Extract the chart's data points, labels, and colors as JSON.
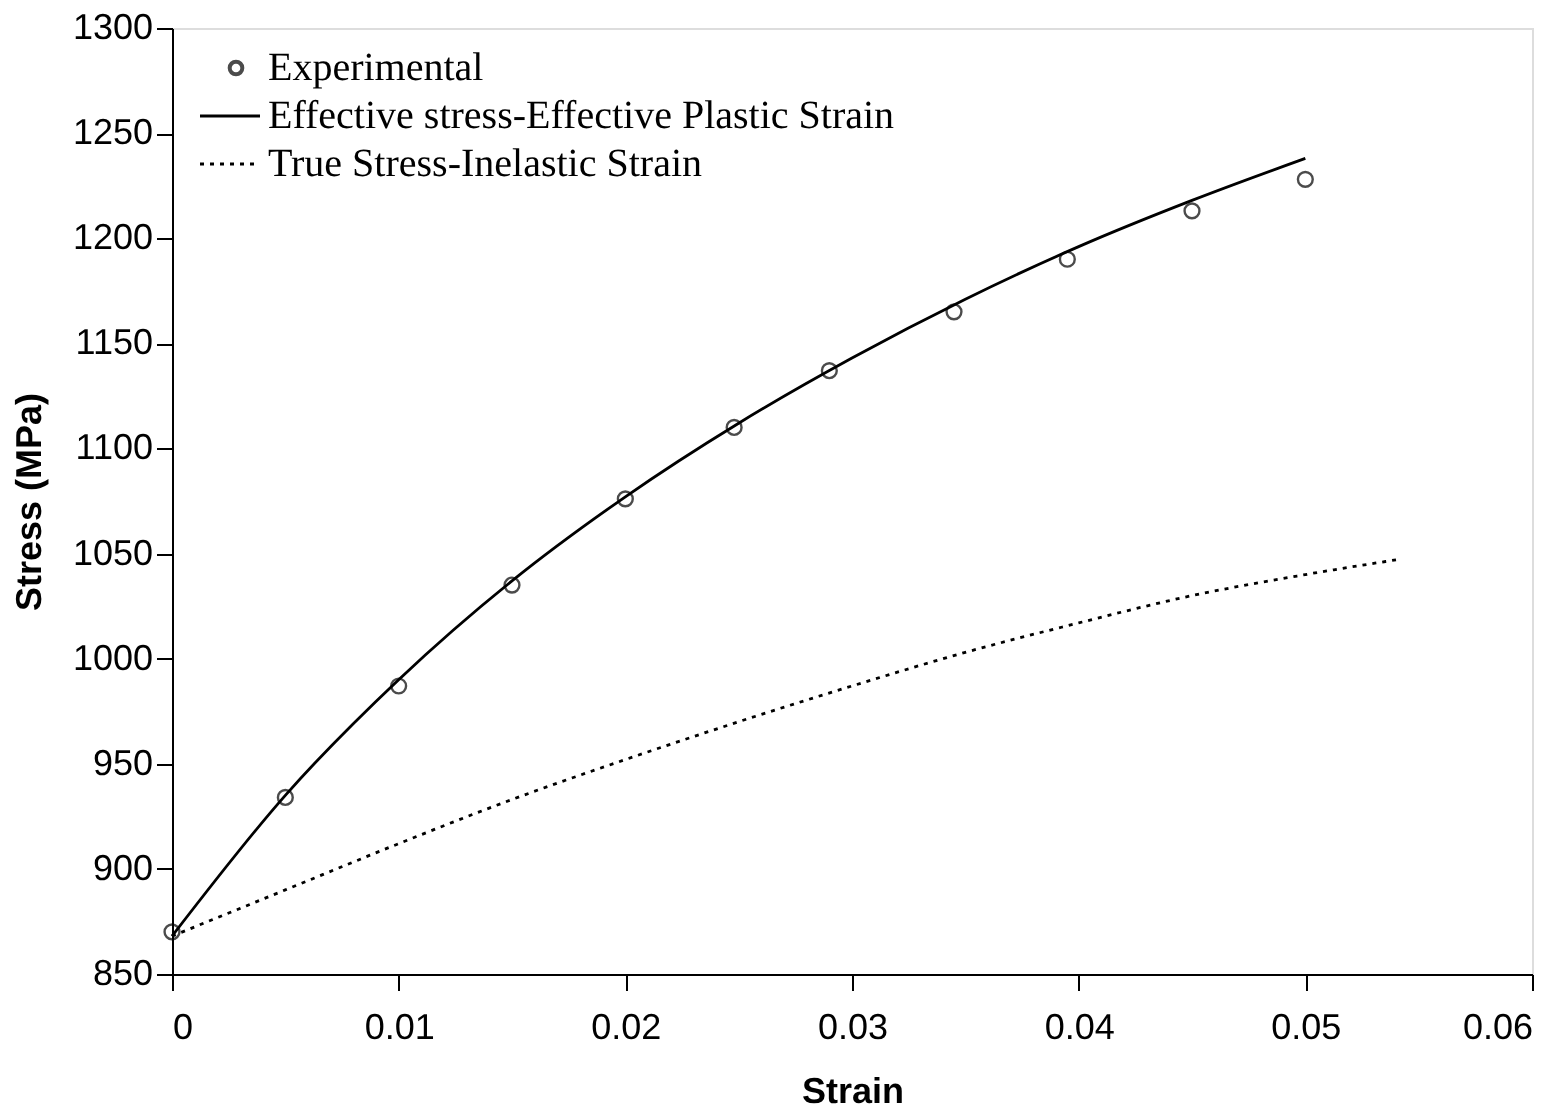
{
  "chart_data": {
    "type": "line",
    "xlabel": "Strain",
    "ylabel": "Stress (MPa)",
    "xlim": [
      0,
      0.06
    ],
    "ylim": [
      850,
      1300
    ],
    "xticks": [
      0,
      0.01,
      0.02,
      0.03,
      0.04,
      0.05,
      0.06
    ],
    "yticks": [
      850,
      900,
      950,
      1000,
      1050,
      1100,
      1150,
      1200,
      1250,
      1300
    ],
    "grid": false,
    "legend": "top left",
    "series": [
      {
        "name": "Experimental",
        "type": "scatter",
        "marker": "circle",
        "color": "#000000",
        "x": [
          0,
          0.005,
          0.01,
          0.015,
          0.02,
          0.0248,
          0.029,
          0.0345,
          0.0395,
          0.045,
          0.05
        ],
        "values": [
          870,
          934,
          987,
          1035,
          1076,
          1110,
          1137,
          1165,
          1190,
          1213,
          1228
        ]
      },
      {
        "name": "Effective stress-Effective Plastic Strain",
        "line_style": "solid",
        "color": "#000000",
        "x": [
          0,
          0.005,
          0.01,
          0.015,
          0.02,
          0.025,
          0.03,
          0.035,
          0.04,
          0.045,
          0.05
        ],
        "values": [
          868,
          935,
          990,
          1037,
          1077,
          1112,
          1143,
          1171,
          1196,
          1218,
          1238
        ]
      },
      {
        "name": "True Stress-Inelastic Strain",
        "line_style": "dotted",
        "color": "#000000",
        "x": [
          0,
          0.005,
          0.01,
          0.015,
          0.02,
          0.025,
          0.03,
          0.035,
          0.04,
          0.045,
          0.05,
          0.054
        ],
        "values": [
          868,
          890,
          912,
          933,
          952,
          970,
          987,
          1003,
          1017,
          1030,
          1040,
          1047
        ]
      }
    ]
  }
}
